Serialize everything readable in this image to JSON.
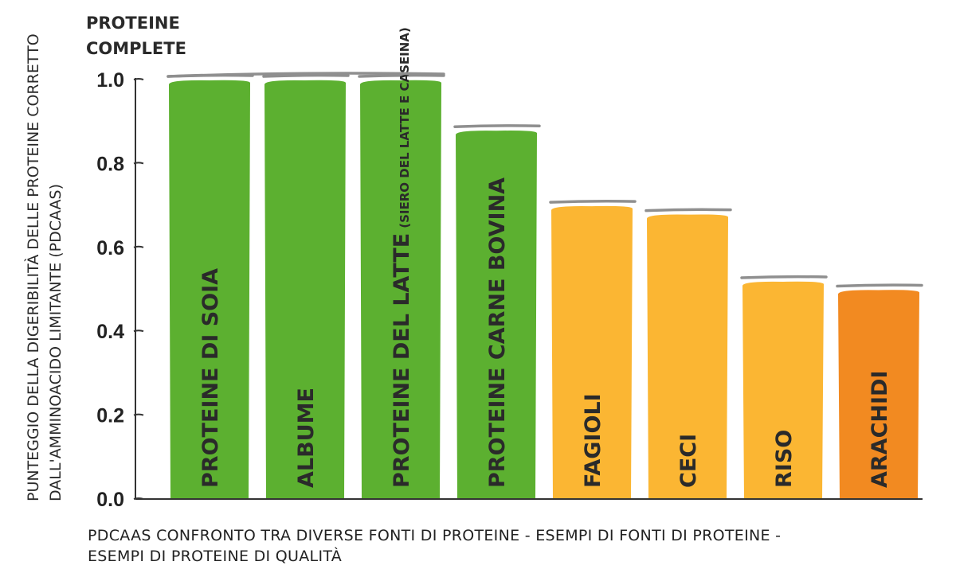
{
  "chart_data": {
    "type": "bar",
    "header": [
      "PROTEINE",
      "COMPLETE"
    ],
    "ylabel": [
      "PUNTEGGIO DELLA DIGERIBILITÀ DELLE PROTEINE CORRETTO",
      "DALL'AMMINOACIDO LIMITANTE (PDCAAS)"
    ],
    "ylim": [
      0,
      1
    ],
    "yticks": [
      "0.0",
      "0.2",
      "0.4",
      "0.6",
      "0.8",
      "1.0"
    ],
    "categories": [
      "PROTEINE DI SOIA",
      "ALBUME",
      "PROTEINE DEL LATTE",
      "PROTEINE CARNE BOVINA",
      "FAGIOLI",
      "CECI",
      "RISO",
      "ARACHIDI"
    ],
    "category_notes": [
      "",
      "",
      "(SIERO DEL LATTE E CASEINA)",
      "",
      "",
      "",
      "",
      ""
    ],
    "values": [
      1.0,
      1.0,
      1.0,
      0.88,
      0.7,
      0.68,
      0.52,
      0.5
    ],
    "colors": [
      "#5cb030",
      "#5cb030",
      "#5cb030",
      "#5cb030",
      "#fbb633",
      "#fbb633",
      "#fbb633",
      "#f28a21"
    ],
    "caption": [
      "PDCAAS CONFRONTO TRA DIVERSE FONTI DI PROTEINE  - ESEMPI DI FONTI DI PROTEINE -",
      "ESEMPI DI PROTEINE DI QUALITÀ"
    ]
  }
}
